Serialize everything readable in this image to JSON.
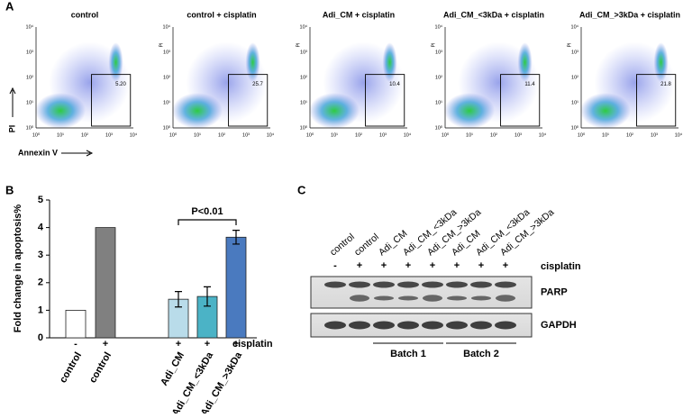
{
  "panel_labels": [
    "A",
    "B",
    "C"
  ],
  "flow": {
    "x_label": "Annexin V",
    "y_label": "PI",
    "ticks": [
      "10⁰",
      "10¹",
      "10²",
      "10³",
      "10⁴"
    ],
    "plots": [
      {
        "title": "control",
        "gate_value": "5.20"
      },
      {
        "title": "control + cisplatin",
        "gate_value": "25.7"
      },
      {
        "title": "Adi_CM + cisplatin",
        "gate_value": "10.4"
      },
      {
        "title": "Adi_CM_<3kDa + cisplatin",
        "gate_value": "11.4"
      },
      {
        "title": "Adi_CM_>3kDa + cisplatin",
        "gate_value": "21.8"
      }
    ]
  },
  "chart_data": {
    "type": "bar",
    "y_label": "Fold change in apoptosis%",
    "categories": [
      "control",
      "control",
      "Adi_CM",
      "Adi_CM_<3kDa",
      "Adi_CM_>3kDa"
    ],
    "cisplatin_signs": [
      "-",
      "+",
      "+",
      "+",
      "+"
    ],
    "cisplatin_label": "cisplatin",
    "series": [
      {
        "values": [
          1,
          4,
          1.4,
          1.5,
          3.65
        ],
        "errors": [
          null,
          null,
          0.28,
          0.35,
          0.25
        ],
        "colors": [
          "#ffffff",
          "#808080",
          "#b9dcea",
          "#4bb3c6",
          "#4a7abf"
        ]
      }
    ],
    "ylim": [
      0,
      5
    ],
    "yticks": [
      0,
      1,
      2,
      3,
      4,
      5
    ],
    "annotation": "P<0.01"
  },
  "blot": {
    "lanes": [
      "control",
      "control",
      "Adi_CM",
      "Adi_CM_<3kDa",
      "Adi_CM_>3kDa",
      "Adi_CM",
      "Adi_CM_<3kDa",
      "Adi_CM_>3kDa"
    ],
    "signs": [
      "-",
      "+",
      "+",
      "+",
      "+",
      "+",
      "+",
      "+"
    ],
    "treatment": "cisplatin",
    "bands": [
      "PARP",
      "GAPDH"
    ],
    "batches": [
      "Batch 1",
      "Batch 2"
    ]
  }
}
